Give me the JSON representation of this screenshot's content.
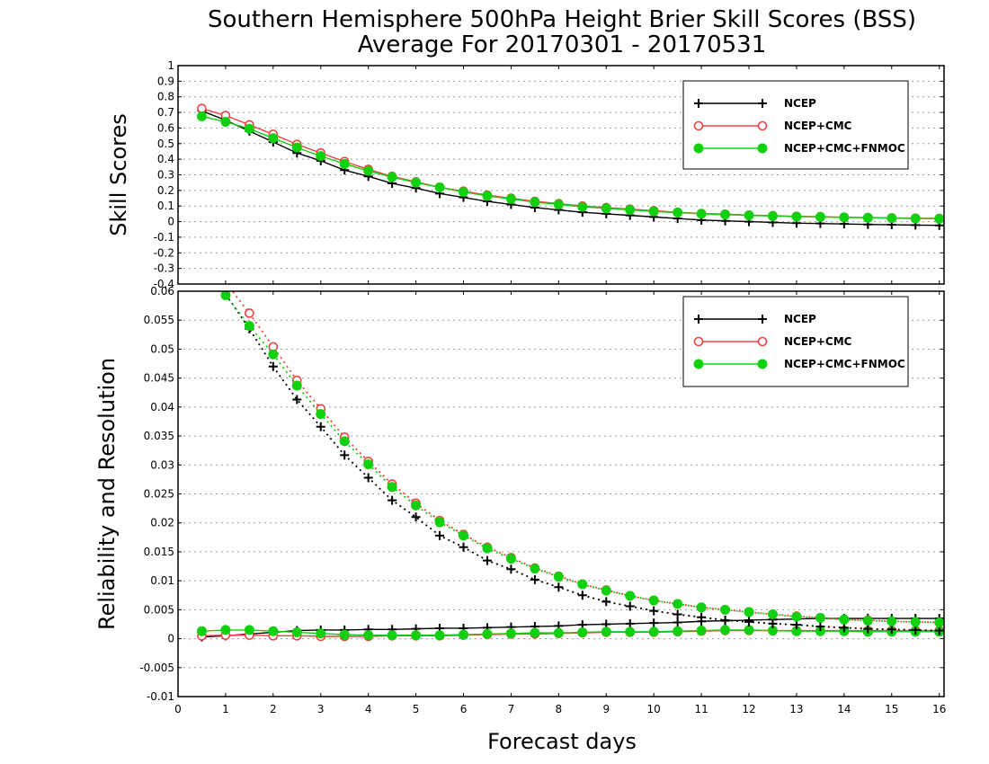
{
  "title_line1": "Southern Hemisphere 500hPa Height Brier Skill Scores (BSS)",
  "title_line2": "Average For 20170301 - 20170531",
  "xlabel": "Forecast days",
  "colors": {
    "NCEP": "#000000",
    "NCEP+CMC": "#f04040",
    "NCEP+CMC+FNMOC": "#10d010"
  },
  "chart_data": [
    {
      "type": "line",
      "ylabel": "Skill Scores",
      "xlim": [
        0,
        16.1
      ],
      "ylim": [
        -0.4,
        1
      ],
      "x_ticks": [
        0,
        1,
        2,
        3,
        4,
        5,
        6,
        7,
        8,
        9,
        10,
        11,
        12,
        13,
        14,
        15,
        16
      ],
      "x_tick_labels": [
        "0",
        "1",
        "2",
        "3",
        "4",
        "5",
        "6",
        "7",
        "8",
        "9",
        "10",
        "11",
        "12",
        "13",
        "14",
        "15",
        "16"
      ],
      "y_ticks": [
        -0.4,
        -0.3,
        -0.2,
        -0.1,
        0,
        0.1,
        0.2,
        0.3,
        0.4,
        0.5,
        0.6,
        0.7,
        0.8,
        0.9,
        1
      ],
      "y_tick_labels": [
        "-0.4",
        "-0.3",
        "-0.2",
        "-0.1",
        "0",
        "0.1",
        "0.2",
        "0.3",
        "0.4",
        "0.5",
        "0.6",
        "0.7",
        "0.8",
        "0.9",
        "1"
      ],
      "grid": true,
      "legend_position": "top-right",
      "legend": [
        "NCEP",
        "NCEP+CMC",
        "NCEP+CMC+FNMOC"
      ],
      "x": [
        0.5,
        1,
        1.5,
        2,
        2.5,
        3,
        3.5,
        4,
        4.5,
        5,
        5.5,
        6,
        6.5,
        7,
        7.5,
        8,
        8.5,
        9,
        9.5,
        10,
        10.5,
        11,
        11.5,
        12,
        12.5,
        13,
        13.5,
        14,
        14.5,
        15,
        15.5,
        16
      ],
      "series": [
        {
          "name": "NCEP",
          "marker": "plus",
          "values": [
            0.71,
            0.65,
            0.58,
            0.51,
            0.44,
            0.39,
            0.33,
            0.29,
            0.245,
            0.215,
            0.18,
            0.155,
            0.13,
            0.11,
            0.09,
            0.075,
            0.06,
            0.05,
            0.04,
            0.03,
            0.02,
            0.01,
            0.005,
            0.0,
            -0.005,
            -0.01,
            -0.012,
            -0.015,
            -0.018,
            -0.02,
            -0.022,
            -0.024
          ]
        },
        {
          "name": "NCEP+CMC",
          "marker": "open-circle",
          "values": [
            0.725,
            0.68,
            0.62,
            0.56,
            0.495,
            0.44,
            0.385,
            0.335,
            0.29,
            0.255,
            0.22,
            0.195,
            0.17,
            0.15,
            0.13,
            0.115,
            0.1,
            0.09,
            0.08,
            0.07,
            0.06,
            0.052,
            0.048,
            0.042,
            0.038,
            0.034,
            0.032,
            0.028,
            0.026,
            0.024,
            0.022,
            0.02
          ]
        },
        {
          "name": "NCEP+CMC+FNMOC",
          "marker": "filled-circle",
          "values": [
            0.675,
            0.64,
            0.595,
            0.535,
            0.475,
            0.42,
            0.37,
            0.325,
            0.285,
            0.25,
            0.22,
            0.19,
            0.165,
            0.145,
            0.125,
            0.11,
            0.095,
            0.085,
            0.075,
            0.065,
            0.058,
            0.05,
            0.045,
            0.04,
            0.036,
            0.032,
            0.03,
            0.027,
            0.025,
            0.022,
            0.02,
            0.018
          ]
        }
      ]
    },
    {
      "type": "line",
      "ylabel": "Reliability and Resolution",
      "xlim": [
        0,
        16.1
      ],
      "ylim": [
        -0.01,
        0.06
      ],
      "x_ticks": [
        0,
        1,
        2,
        3,
        4,
        5,
        6,
        7,
        8,
        9,
        10,
        11,
        12,
        13,
        14,
        15,
        16
      ],
      "x_tick_labels": [
        "0",
        "1",
        "2",
        "3",
        "4",
        "5",
        "6",
        "7",
        "8",
        "9",
        "10",
        "11",
        "12",
        "13",
        "14",
        "15",
        "16"
      ],
      "y_ticks": [
        -0.01,
        -0.005,
        0,
        0.005,
        0.01,
        0.015,
        0.02,
        0.025,
        0.03,
        0.035,
        0.04,
        0.045,
        0.05,
        0.055,
        0.06
      ],
      "y_tick_labels": [
        "-0.01",
        "-0.005",
        "0",
        "0.005",
        "0.01",
        "0.015",
        "0.02",
        "0.025",
        "0.03",
        "0.035",
        "0.04",
        "0.045",
        "0.05",
        "0.055",
        "0.06"
      ],
      "grid": true,
      "legend_position": "top-right",
      "legend": [
        "NCEP",
        "NCEP+CMC",
        "NCEP+CMC+FNMOC"
      ],
      "x": [
        0.5,
        1,
        1.5,
        2,
        2.5,
        3,
        3.5,
        4,
        4.5,
        5,
        5.5,
        6,
        6.5,
        7,
        7.5,
        8,
        8.5,
        9,
        9.5,
        10,
        10.5,
        11,
        11.5,
        12,
        12.5,
        13,
        13.5,
        14,
        14.5,
        15,
        15.5,
        16
      ],
      "series": [
        {
          "name": "NCEP",
          "component": "reliability",
          "line": "solid",
          "marker": "plus",
          "values": [
            0.0003,
            0.0005,
            0.0008,
            0.0011,
            0.0014,
            0.0015,
            0.0015,
            0.0016,
            0.0016,
            0.0017,
            0.0018,
            0.0018,
            0.0019,
            0.002,
            0.0021,
            0.0022,
            0.0024,
            0.0025,
            0.0026,
            0.0027,
            0.0028,
            0.003,
            0.0031,
            0.0032,
            0.0033,
            0.0034,
            0.0035,
            0.0035,
            0.0035,
            0.0035,
            0.0035,
            0.0035
          ]
        },
        {
          "name": "NCEP+CMC",
          "component": "reliability",
          "line": "solid",
          "marker": "open-circle",
          "values": [
            0.0005,
            0.0006,
            0.0006,
            0.0005,
            0.0005,
            0.0004,
            0.0004,
            0.0004,
            0.0005,
            0.0005,
            0.0005,
            0.0006,
            0.0007,
            0.0008,
            0.0008,
            0.0009,
            0.001,
            0.0011,
            0.0011,
            0.0011,
            0.0012,
            0.0013,
            0.0014,
            0.0014,
            0.0014,
            0.0014,
            0.0014,
            0.0014,
            0.0014,
            0.0014,
            0.0014,
            0.0014
          ]
        },
        {
          "name": "NCEP+CMC+FNMOC",
          "component": "reliability",
          "line": "solid",
          "marker": "filled-circle",
          "values": [
            0.0013,
            0.0015,
            0.0015,
            0.0013,
            0.0011,
            0.0009,
            0.0007,
            0.0006,
            0.0006,
            0.0006,
            0.0006,
            0.0007,
            0.0008,
            0.0009,
            0.001,
            0.001,
            0.0011,
            0.0012,
            0.0012,
            0.0012,
            0.0013,
            0.0014,
            0.0015,
            0.0015,
            0.0014,
            0.0013,
            0.0013,
            0.0013,
            0.0012,
            0.0012,
            0.0012,
            0.0012
          ]
        },
        {
          "name": "NCEP",
          "component": "resolution",
          "line": "dotted",
          "marker": "plus",
          "values": [
            0.0645,
            0.0595,
            0.0535,
            0.047,
            0.0413,
            0.0366,
            0.0317,
            0.0278,
            0.0239,
            0.021,
            0.0178,
            0.0158,
            0.0135,
            0.012,
            0.0102,
            0.0089,
            0.0075,
            0.0064,
            0.0056,
            0.0048,
            0.0042,
            0.0037,
            0.0032,
            0.0029,
            0.0026,
            0.0024,
            0.0021,
            0.0019,
            0.0017,
            0.0016,
            0.0015,
            0.0014
          ]
        },
        {
          "name": "NCEP+CMC",
          "component": "resolution",
          "line": "dotted",
          "marker": "open-circle",
          "values": [
            0.0675,
            0.0615,
            0.0562,
            0.0504,
            0.0446,
            0.0397,
            0.0348,
            0.0306,
            0.0267,
            0.0234,
            0.0204,
            0.018,
            0.0158,
            0.014,
            0.0122,
            0.0108,
            0.0094,
            0.0084,
            0.0074,
            0.0066,
            0.006,
            0.0054,
            0.005,
            0.0046,
            0.0042,
            0.0039,
            0.0036,
            0.0033,
            0.0032,
            0.003,
            0.0029,
            0.0028
          ]
        },
        {
          "name": "NCEP+CMC+FNMOC",
          "component": "resolution",
          "line": "dotted",
          "marker": "filled-circle",
          "values": [
            0.0655,
            0.0593,
            0.054,
            0.0491,
            0.0437,
            0.0388,
            0.0341,
            0.0301,
            0.0262,
            0.023,
            0.0201,
            0.0178,
            0.0156,
            0.0138,
            0.0121,
            0.0107,
            0.0094,
            0.0083,
            0.0074,
            0.0066,
            0.006,
            0.0054,
            0.005,
            0.0046,
            0.0042,
            0.0038,
            0.0036,
            0.0033,
            0.0031,
            0.003,
            0.0029,
            0.0028
          ]
        }
      ]
    }
  ]
}
